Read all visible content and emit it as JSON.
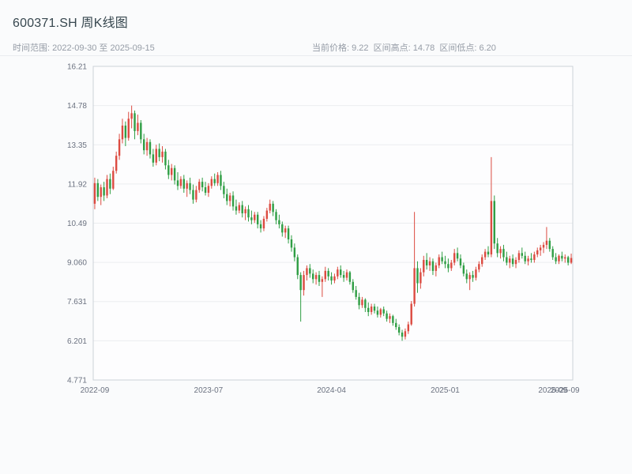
{
  "header": {
    "title": "600371.SH 周K线图",
    "subtitle_left": "时间范围: 2022-09-30 至 2025-09-15",
    "subtitle_right": "当前价格: 9.22  区间高点: 14.78  区间低点: 6.20"
  },
  "chart_data": {
    "type": "candlestick",
    "symbol": "600371.SH",
    "period": "weekly",
    "title": "600371.SH 周K线图",
    "date_range": {
      "start": "2022-09-30",
      "end": "2025-09-15"
    },
    "current_price": 9.22,
    "range_high": 14.78,
    "range_low": 6.2,
    "grid": true,
    "colors": {
      "up": "#dc4b41",
      "down": "#2f9e44",
      "gridline": "#ebedf0",
      "axis_border": "#ccd2d8",
      "tick_text": "#6b7280",
      "plot_bg": "#fdfdfe"
    },
    "y_axis": {
      "min": 4.771,
      "max": 16.21,
      "ticks": [
        {
          "label": "16.21",
          "value": 16.21
        },
        {
          "label": "14.78",
          "value": 14.78
        },
        {
          "label": "13.35",
          "value": 13.35
        },
        {
          "label": "11.92",
          "value": 11.92
        },
        {
          "label": "10.49",
          "value": 10.49
        },
        {
          "label": "9.060",
          "value": 9.06
        },
        {
          "label": "7.631",
          "value": 7.631
        },
        {
          "label": "6.201",
          "value": 6.201
        },
        {
          "label": "4.771",
          "value": 4.771
        }
      ]
    },
    "x_axis": {
      "ticks": [
        {
          "label": "2022-09",
          "index": 0
        },
        {
          "label": "2023-07",
          "index": 37
        },
        {
          "label": "2024-04",
          "index": 77
        },
        {
          "label": "2025-01",
          "index": 114
        },
        {
          "label": "2025-09",
          "index": 149
        },
        {
          "label": "2025-09",
          "index": 153
        }
      ]
    },
    "candles": [
      [
        11.2,
        12.15,
        11.0,
        11.95
      ],
      [
        11.95,
        12.1,
        11.3,
        11.45
      ],
      [
        11.45,
        11.9,
        11.15,
        11.8
      ],
      [
        11.8,
        12.0,
        11.3,
        11.5
      ],
      [
        11.5,
        12.25,
        11.4,
        12.1
      ],
      [
        12.1,
        12.3,
        11.55,
        11.75
      ],
      [
        11.75,
        12.55,
        11.7,
        12.4
      ],
      [
        12.4,
        13.1,
        12.3,
        12.95
      ],
      [
        12.95,
        13.75,
        12.8,
        13.55
      ],
      [
        13.55,
        14.3,
        13.4,
        14.05
      ],
      [
        14.05,
        14.2,
        13.3,
        13.6
      ],
      [
        13.6,
        14.55,
        13.5,
        14.3
      ],
      [
        14.3,
        14.78,
        13.95,
        14.5
      ],
      [
        14.5,
        14.6,
        13.55,
        13.85
      ],
      [
        13.85,
        14.45,
        13.7,
        14.15
      ],
      [
        14.15,
        14.25,
        13.4,
        13.55
      ],
      [
        13.55,
        13.75,
        13.0,
        13.15
      ],
      [
        13.15,
        13.6,
        12.95,
        13.45
      ],
      [
        13.45,
        13.55,
        12.85,
        13.0
      ],
      [
        13.0,
        13.2,
        12.55,
        12.7
      ],
      [
        12.7,
        13.35,
        12.6,
        13.2
      ],
      [
        13.2,
        13.4,
        12.75,
        12.9
      ],
      [
        12.9,
        13.3,
        12.7,
        13.1
      ],
      [
        13.1,
        13.2,
        12.45,
        12.6
      ],
      [
        12.6,
        12.8,
        12.1,
        12.25
      ],
      [
        12.25,
        12.65,
        12.05,
        12.5
      ],
      [
        12.5,
        12.6,
        11.9,
        12.05
      ],
      [
        12.05,
        12.35,
        11.7,
        11.85
      ],
      [
        11.85,
        12.2,
        11.75,
        12.1
      ],
      [
        12.1,
        12.25,
        11.6,
        11.75
      ],
      [
        11.75,
        12.05,
        11.45,
        11.95
      ],
      [
        11.95,
        12.15,
        11.55,
        11.7
      ],
      [
        11.7,
        11.9,
        11.2,
        11.35
      ],
      [
        11.35,
        11.85,
        11.25,
        11.7
      ],
      [
        11.7,
        12.1,
        11.6,
        12.0
      ],
      [
        12.0,
        12.15,
        11.65,
        11.8
      ],
      [
        11.8,
        12.0,
        11.5,
        11.6
      ],
      [
        11.6,
        11.95,
        11.45,
        11.85
      ],
      [
        11.85,
        12.2,
        11.75,
        12.1
      ],
      [
        12.1,
        12.3,
        11.85,
        11.95
      ],
      [
        11.95,
        12.35,
        11.85,
        12.25
      ],
      [
        12.25,
        12.4,
        11.7,
        11.85
      ],
      [
        11.85,
        12.0,
        11.4,
        11.55
      ],
      [
        11.55,
        11.75,
        11.15,
        11.3
      ],
      [
        11.3,
        11.6,
        11.1,
        11.5
      ],
      [
        11.5,
        11.65,
        10.95,
        11.1
      ],
      [
        11.1,
        11.35,
        10.8,
        10.95
      ],
      [
        10.95,
        11.25,
        10.85,
        11.15
      ],
      [
        11.15,
        11.3,
        10.7,
        10.85
      ],
      [
        10.85,
        11.1,
        10.6,
        11.0
      ],
      [
        11.0,
        11.15,
        10.55,
        10.7
      ],
      [
        10.7,
        10.95,
        10.45,
        10.6
      ],
      [
        10.6,
        10.9,
        10.5,
        10.8
      ],
      [
        10.8,
        10.9,
        10.3,
        10.45
      ],
      [
        10.45,
        10.6,
        10.15,
        10.3
      ],
      [
        10.3,
        10.75,
        10.2,
        10.65
      ],
      [
        10.65,
        11.05,
        10.55,
        10.95
      ],
      [
        10.95,
        11.35,
        10.85,
        11.2
      ],
      [
        11.2,
        11.3,
        10.75,
        10.9
      ],
      [
        10.9,
        11.0,
        10.45,
        10.6
      ],
      [
        10.6,
        10.8,
        10.3,
        10.45
      ],
      [
        10.45,
        10.55,
        10.0,
        10.15
      ],
      [
        10.15,
        10.4,
        9.95,
        10.3
      ],
      [
        10.3,
        10.4,
        9.75,
        9.9
      ],
      [
        9.9,
        10.05,
        9.45,
        9.6
      ],
      [
        9.6,
        9.75,
        9.1,
        9.25
      ],
      [
        9.25,
        9.35,
        8.45,
        8.6
      ],
      [
        8.6,
        8.7,
        6.9,
        8.05
      ],
      [
        8.05,
        8.75,
        7.85,
        8.6
      ],
      [
        8.6,
        8.95,
        8.4,
        8.85
      ],
      [
        8.85,
        9.0,
        8.5,
        8.65
      ],
      [
        8.65,
        8.8,
        8.3,
        8.45
      ],
      [
        8.45,
        8.7,
        8.25,
        8.6
      ],
      [
        8.6,
        8.75,
        8.2,
        8.35
      ],
      [
        8.35,
        8.55,
        7.8,
        8.45
      ],
      [
        8.45,
        8.9,
        8.35,
        8.75
      ],
      [
        8.75,
        8.85,
        8.4,
        8.55
      ],
      [
        8.55,
        8.7,
        8.25,
        8.4
      ],
      [
        8.4,
        8.65,
        8.3,
        8.55
      ],
      [
        8.55,
        8.9,
        8.45,
        8.8
      ],
      [
        8.8,
        8.95,
        8.5,
        8.6
      ],
      [
        8.6,
        8.75,
        8.35,
        8.5
      ],
      [
        8.5,
        8.8,
        8.4,
        8.7
      ],
      [
        8.7,
        8.75,
        8.25,
        8.35
      ],
      [
        8.35,
        8.45,
        7.95,
        8.05
      ],
      [
        8.05,
        8.2,
        7.7,
        7.8
      ],
      [
        7.8,
        7.95,
        7.35,
        7.5
      ],
      [
        7.5,
        7.8,
        7.4,
        7.7
      ],
      [
        7.7,
        7.75,
        7.25,
        7.4
      ],
      [
        7.4,
        7.6,
        7.1,
        7.25
      ],
      [
        7.25,
        7.55,
        7.15,
        7.45
      ],
      [
        7.45,
        7.55,
        7.2,
        7.3
      ],
      [
        7.3,
        7.45,
        7.05,
        7.15
      ],
      [
        7.15,
        7.4,
        7.05,
        7.35
      ],
      [
        7.35,
        7.45,
        7.1,
        7.2
      ],
      [
        7.2,
        7.3,
        6.9,
        7.0
      ],
      [
        7.0,
        7.2,
        6.85,
        7.1
      ],
      [
        7.1,
        7.15,
        6.75,
        6.85
      ],
      [
        6.85,
        7.0,
        6.6,
        6.7
      ],
      [
        6.7,
        6.8,
        6.4,
        6.5
      ],
      [
        6.5,
        6.6,
        6.2,
        6.35
      ],
      [
        6.35,
        6.65,
        6.25,
        6.55
      ],
      [
        6.55,
        6.9,
        6.45,
        6.8
      ],
      [
        6.8,
        7.65,
        6.75,
        7.55
      ],
      [
        7.55,
        10.9,
        7.45,
        8.85
      ],
      [
        8.85,
        9.1,
        7.95,
        8.3
      ],
      [
        8.3,
        8.85,
        8.1,
        8.7
      ],
      [
        8.7,
        9.3,
        8.55,
        9.15
      ],
      [
        9.15,
        9.4,
        8.8,
        8.95
      ],
      [
        8.95,
        9.25,
        8.75,
        9.1
      ],
      [
        9.1,
        9.2,
        8.6,
        8.75
      ],
      [
        8.75,
        9.05,
        8.55,
        8.95
      ],
      [
        8.95,
        9.35,
        8.85,
        9.25
      ],
      [
        9.25,
        9.45,
        9.0,
        9.1
      ],
      [
        9.1,
        9.3,
        8.85,
        9.0
      ],
      [
        9.0,
        9.2,
        8.7,
        8.85
      ],
      [
        8.85,
        9.15,
        8.75,
        9.05
      ],
      [
        9.05,
        9.55,
        8.95,
        9.4
      ],
      [
        9.4,
        9.6,
        9.1,
        9.2
      ],
      [
        9.2,
        9.35,
        8.85,
        8.95
      ],
      [
        8.95,
        9.05,
        8.55,
        8.65
      ],
      [
        8.65,
        8.8,
        8.3,
        8.45
      ],
      [
        8.45,
        8.7,
        8.05,
        8.6
      ],
      [
        8.6,
        8.75,
        8.35,
        8.5
      ],
      [
        8.5,
        8.9,
        8.4,
        8.8
      ],
      [
        8.8,
        9.1,
        8.7,
        9.0
      ],
      [
        9.0,
        9.35,
        8.9,
        9.25
      ],
      [
        9.25,
        9.55,
        9.15,
        9.45
      ],
      [
        9.45,
        9.65,
        9.25,
        9.35
      ],
      [
        9.35,
        12.9,
        9.25,
        11.3
      ],
      [
        11.3,
        11.5,
        9.55,
        9.75
      ],
      [
        9.75,
        9.95,
        9.25,
        9.4
      ],
      [
        9.4,
        9.65,
        9.2,
        9.55
      ],
      [
        9.55,
        9.7,
        9.1,
        9.25
      ],
      [
        9.25,
        9.45,
        8.95,
        9.05
      ],
      [
        9.05,
        9.3,
        8.85,
        9.2
      ],
      [
        9.2,
        9.35,
        8.9,
        9.0
      ],
      [
        9.0,
        9.25,
        8.85,
        9.15
      ],
      [
        9.15,
        9.5,
        9.05,
        9.4
      ],
      [
        9.4,
        9.6,
        9.2,
        9.3
      ],
      [
        9.3,
        9.45,
        9.0,
        9.1
      ],
      [
        9.1,
        9.3,
        8.95,
        9.2
      ],
      [
        9.2,
        9.4,
        9.05,
        9.15
      ],
      [
        9.15,
        9.45,
        9.05,
        9.35
      ],
      [
        9.35,
        9.6,
        9.25,
        9.5
      ],
      [
        9.5,
        9.7,
        9.3,
        9.6
      ],
      [
        9.6,
        9.8,
        9.4,
        9.7
      ],
      [
        9.7,
        10.35,
        9.55,
        9.85
      ],
      [
        9.85,
        9.95,
        9.45,
        9.55
      ],
      [
        9.55,
        9.65,
        9.15,
        9.25
      ],
      [
        9.25,
        9.4,
        9.0,
        9.1
      ],
      [
        9.1,
        9.35,
        9.0,
        9.3
      ],
      [
        9.3,
        9.45,
        9.1,
        9.2
      ],
      [
        9.2,
        9.35,
        9.05,
        9.25
      ],
      [
        9.25,
        9.3,
        8.95,
        9.05
      ],
      [
        9.05,
        9.38,
        9.0,
        9.22
      ]
    ]
  }
}
